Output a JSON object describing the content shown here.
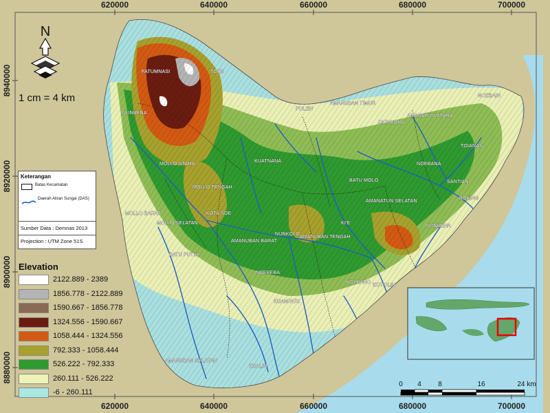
{
  "grid": {
    "x_labels": [
      "620000",
      "640000",
      "660000",
      "680000",
      "700000"
    ],
    "y_labels": [
      "8940000",
      "8920000",
      "8900000",
      "8880000"
    ]
  },
  "north": {
    "letter": "N"
  },
  "map_scale": {
    "ratio_text": "1 cm = 4 km"
  },
  "legend_box": {
    "title": "Keterangan",
    "boundary_label": "Batas Kecamatan",
    "river_label": "Daerah Aliran Sungai (DAS)",
    "source": "Sumber Data : Demnas 2013",
    "projection": "Projection : UTM Zone 51S"
  },
  "elevation": {
    "title": "Elevation",
    "classes": [
      {
        "label": "2122.889 - 2389",
        "color": "#ffffff"
      },
      {
        "label": "1856.778 - 2122.889",
        "color": "#b4b4b4"
      },
      {
        "label": "1590.667 - 1856.778",
        "color": "#8a6a55"
      },
      {
        "label": "1324.556 - 1590.667",
        "color": "#6b1c10"
      },
      {
        "label": "1058.444 - 1324.556",
        "color": "#d35a12"
      },
      {
        "label": "792.333 - 1058.444",
        "color": "#a7a12e"
      },
      {
        "label": "526.222 - 792.333",
        "color": "#2f9a2f"
      },
      {
        "label": "260.111 - 526.222",
        "color": "#eef3b8"
      },
      {
        "label": "-6 - 260.111",
        "color": "#a9e8e3"
      }
    ]
  },
  "scalebar": {
    "ticks": [
      "0",
      "4",
      "8",
      "16",
      "24 km"
    ]
  },
  "places": [
    "FATUMNASI",
    "TOBU",
    "NUNBENA",
    "POLEN",
    "AMANUBAN TIMUR",
    "AMANATUN UTARA",
    "NOEBAIN",
    "FATUKOPA",
    "TOIANAS",
    "MOLLO UTARA",
    "NOEBANA",
    "SANTIAN",
    "MOLLO TENGAH",
    "KUATNANA",
    "BATU MOLO",
    "AMANATUN SELATAN",
    "BOKING",
    "MOLLO BARAT",
    "MOLLO SELATAN",
    "KOTA SOE",
    "NUNKOLO",
    "AMANUBAN BARAT",
    "KI'E",
    "AMANUBAN TENGAH",
    "BATU PUTIH",
    "NOEBEBA",
    "KOLBANO",
    "KOT'OLIN",
    "KUANFATU",
    "AMANUBAN SELATAN",
    "KUALIN",
    "NUNBENA"
  ]
}
